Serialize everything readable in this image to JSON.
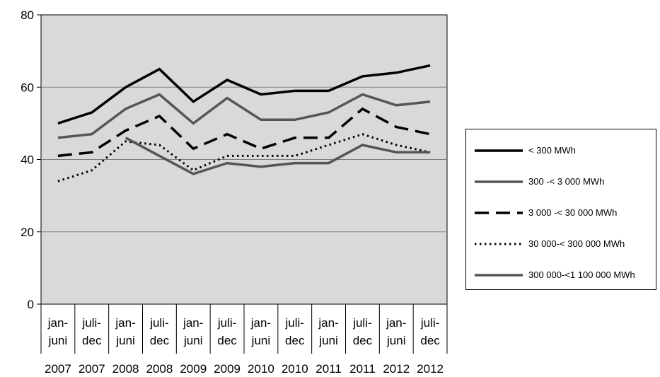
{
  "chart_data": {
    "type": "line",
    "title": "",
    "xlabel": "",
    "ylabel": "",
    "ylim": [
      0,
      80
    ],
    "y_ticks": [
      "0",
      "20",
      "40",
      "60",
      "80"
    ],
    "grid": true,
    "legend_position": "right",
    "categories": [
      {
        "period": [
          "jan-",
          "juni"
        ],
        "year": "2007"
      },
      {
        "period": [
          "juli-",
          "dec"
        ],
        "year": "2007"
      },
      {
        "period": [
          "jan-",
          "juni"
        ],
        "year": "2008"
      },
      {
        "period": [
          "juli-",
          "dec"
        ],
        "year": "2008"
      },
      {
        "period": [
          "jan-",
          "juni"
        ],
        "year": "2009"
      },
      {
        "period": [
          "juli-",
          "dec"
        ],
        "year": "2009"
      },
      {
        "period": [
          "jan-",
          "juni"
        ],
        "year": "2010"
      },
      {
        "period": [
          "juli-",
          "dec"
        ],
        "year": "2010"
      },
      {
        "period": [
          "jan-",
          "juni"
        ],
        "year": "2011"
      },
      {
        "period": [
          "juli-",
          "dec"
        ],
        "year": "2011"
      },
      {
        "period": [
          "jan-",
          "juni"
        ],
        "year": "2012"
      },
      {
        "period": [
          "juli-",
          "dec"
        ],
        "year": "2012"
      }
    ],
    "series": [
      {
        "name": "< 300 MWh",
        "color": "#000000",
        "style": "solid",
        "values": [
          50,
          53,
          60,
          65,
          56,
          62,
          58,
          59,
          59,
          63,
          64,
          66
        ]
      },
      {
        "name": "300 -< 3 000 MWh",
        "color": "#555555",
        "style": "solid",
        "values": [
          46,
          47,
          54,
          58,
          50,
          57,
          51,
          51,
          53,
          58,
          55,
          56
        ]
      },
      {
        "name": "3 000 -< 30 000 MWh",
        "color": "#000000",
        "style": "dashed",
        "values": [
          41,
          42,
          48,
          52,
          43,
          47,
          43,
          46,
          46,
          54,
          49,
          47
        ]
      },
      {
        "name": "30 000-< 300 000 MWh",
        "color": "#000000",
        "style": "dotted",
        "values": [
          34,
          37,
          45,
          44,
          37,
          41,
          41,
          41,
          44,
          47,
          44,
          42
        ]
      },
      {
        "name": "300 000-<1 100 000 MWh",
        "color": "#555555",
        "style": "solid",
        "values": [
          null,
          null,
          46,
          41,
          36,
          39,
          38,
          39,
          39,
          44,
          42,
          42
        ]
      }
    ]
  }
}
